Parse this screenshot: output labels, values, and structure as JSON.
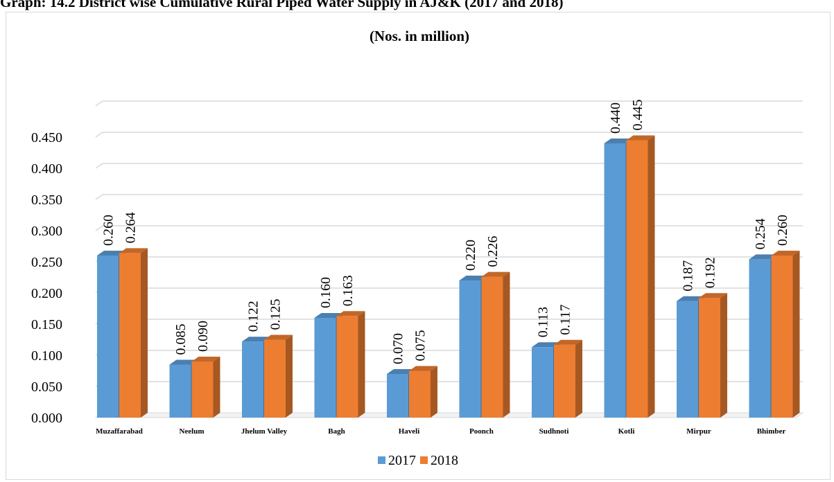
{
  "page": {
    "title": "Graph: 14.2 District wise Cumulative Rural Piped Water Supply in AJ&K (2017 and 2018)"
  },
  "chart_data": {
    "type": "bar",
    "subtitle": "(Nos. in million)",
    "categories": [
      "Muzaffarabad",
      "Neelum",
      "Jhelum Valley",
      "Bagh",
      "Haveli",
      "Poonch",
      "Sudhnoti",
      "Kotli",
      "Mirpur",
      "Bhimber"
    ],
    "series": [
      {
        "name": "2017",
        "color": "#5b9bd5",
        "values": [
          0.26,
          0.085,
          0.122,
          0.16,
          0.07,
          0.22,
          0.113,
          0.44,
          0.187,
          0.254
        ],
        "labels": [
          "0.260",
          "0.085",
          "0.122",
          "0.160",
          "0.070",
          "0.220",
          "0.113",
          "0.440",
          "0.187",
          "0.254"
        ]
      },
      {
        "name": "2018",
        "color": "#ed7d31",
        "values": [
          0.264,
          0.09,
          0.125,
          0.163,
          0.075,
          0.226,
          0.117,
          0.445,
          0.192,
          0.26
        ],
        "labels": [
          "0.264",
          "0.090",
          "0.125",
          "0.163",
          "0.075",
          "0.226",
          "0.117",
          "0.445",
          "0.192",
          "0.260"
        ]
      }
    ],
    "yticks": [
      "0.000",
      "0.050",
      "0.100",
      "0.150",
      "0.200",
      "0.250",
      "0.300",
      "0.350",
      "0.400",
      "0.450"
    ],
    "ylim": [
      0,
      0.5
    ],
    "grid": true,
    "legend_position": "bottom",
    "style": "3d-column"
  }
}
